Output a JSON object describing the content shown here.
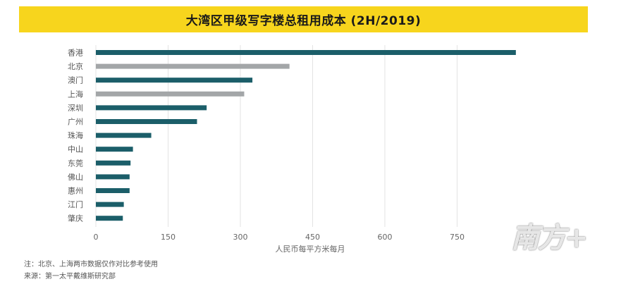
{
  "title": "大湾区甲级写字楼总租用成本 (2H/2019)",
  "footnotes": {
    "note": "注：北京、上海两市数据仅作对比参考使用",
    "source": "来源：第一太平戴维斯研究部"
  },
  "watermark": "南方+",
  "colors": {
    "title_bg": "#f7d51d",
    "bay_area": "#1b5e69",
    "comparison": "#a3a6a8",
    "grid": "#e3e3e3"
  },
  "chart_data": {
    "type": "bar",
    "orientation": "horizontal",
    "title": "大湾区甲级写字楼总租用成本 (2H/2019)",
    "xlabel": "人民币每平方米每月",
    "ylabel": "",
    "xlim": [
      0,
      900
    ],
    "xticks": [
      0,
      150,
      300,
      450,
      600,
      750
    ],
    "grid": true,
    "categories": [
      "香港",
      "北京",
      "澳门",
      "上海",
      "深圳",
      "广州",
      "珠海",
      "中山",
      "东莞",
      "佛山",
      "惠州",
      "江门",
      "肇庆"
    ],
    "values": [
      872,
      402,
      325,
      308,
      230,
      210,
      115,
      77,
      72,
      70,
      70,
      58,
      56
    ],
    "highlight_colors": [
      "bay_area",
      "comparison",
      "bay_area",
      "comparison",
      "bay_area",
      "bay_area",
      "bay_area",
      "bay_area",
      "bay_area",
      "bay_area",
      "bay_area",
      "bay_area",
      "bay_area"
    ]
  }
}
